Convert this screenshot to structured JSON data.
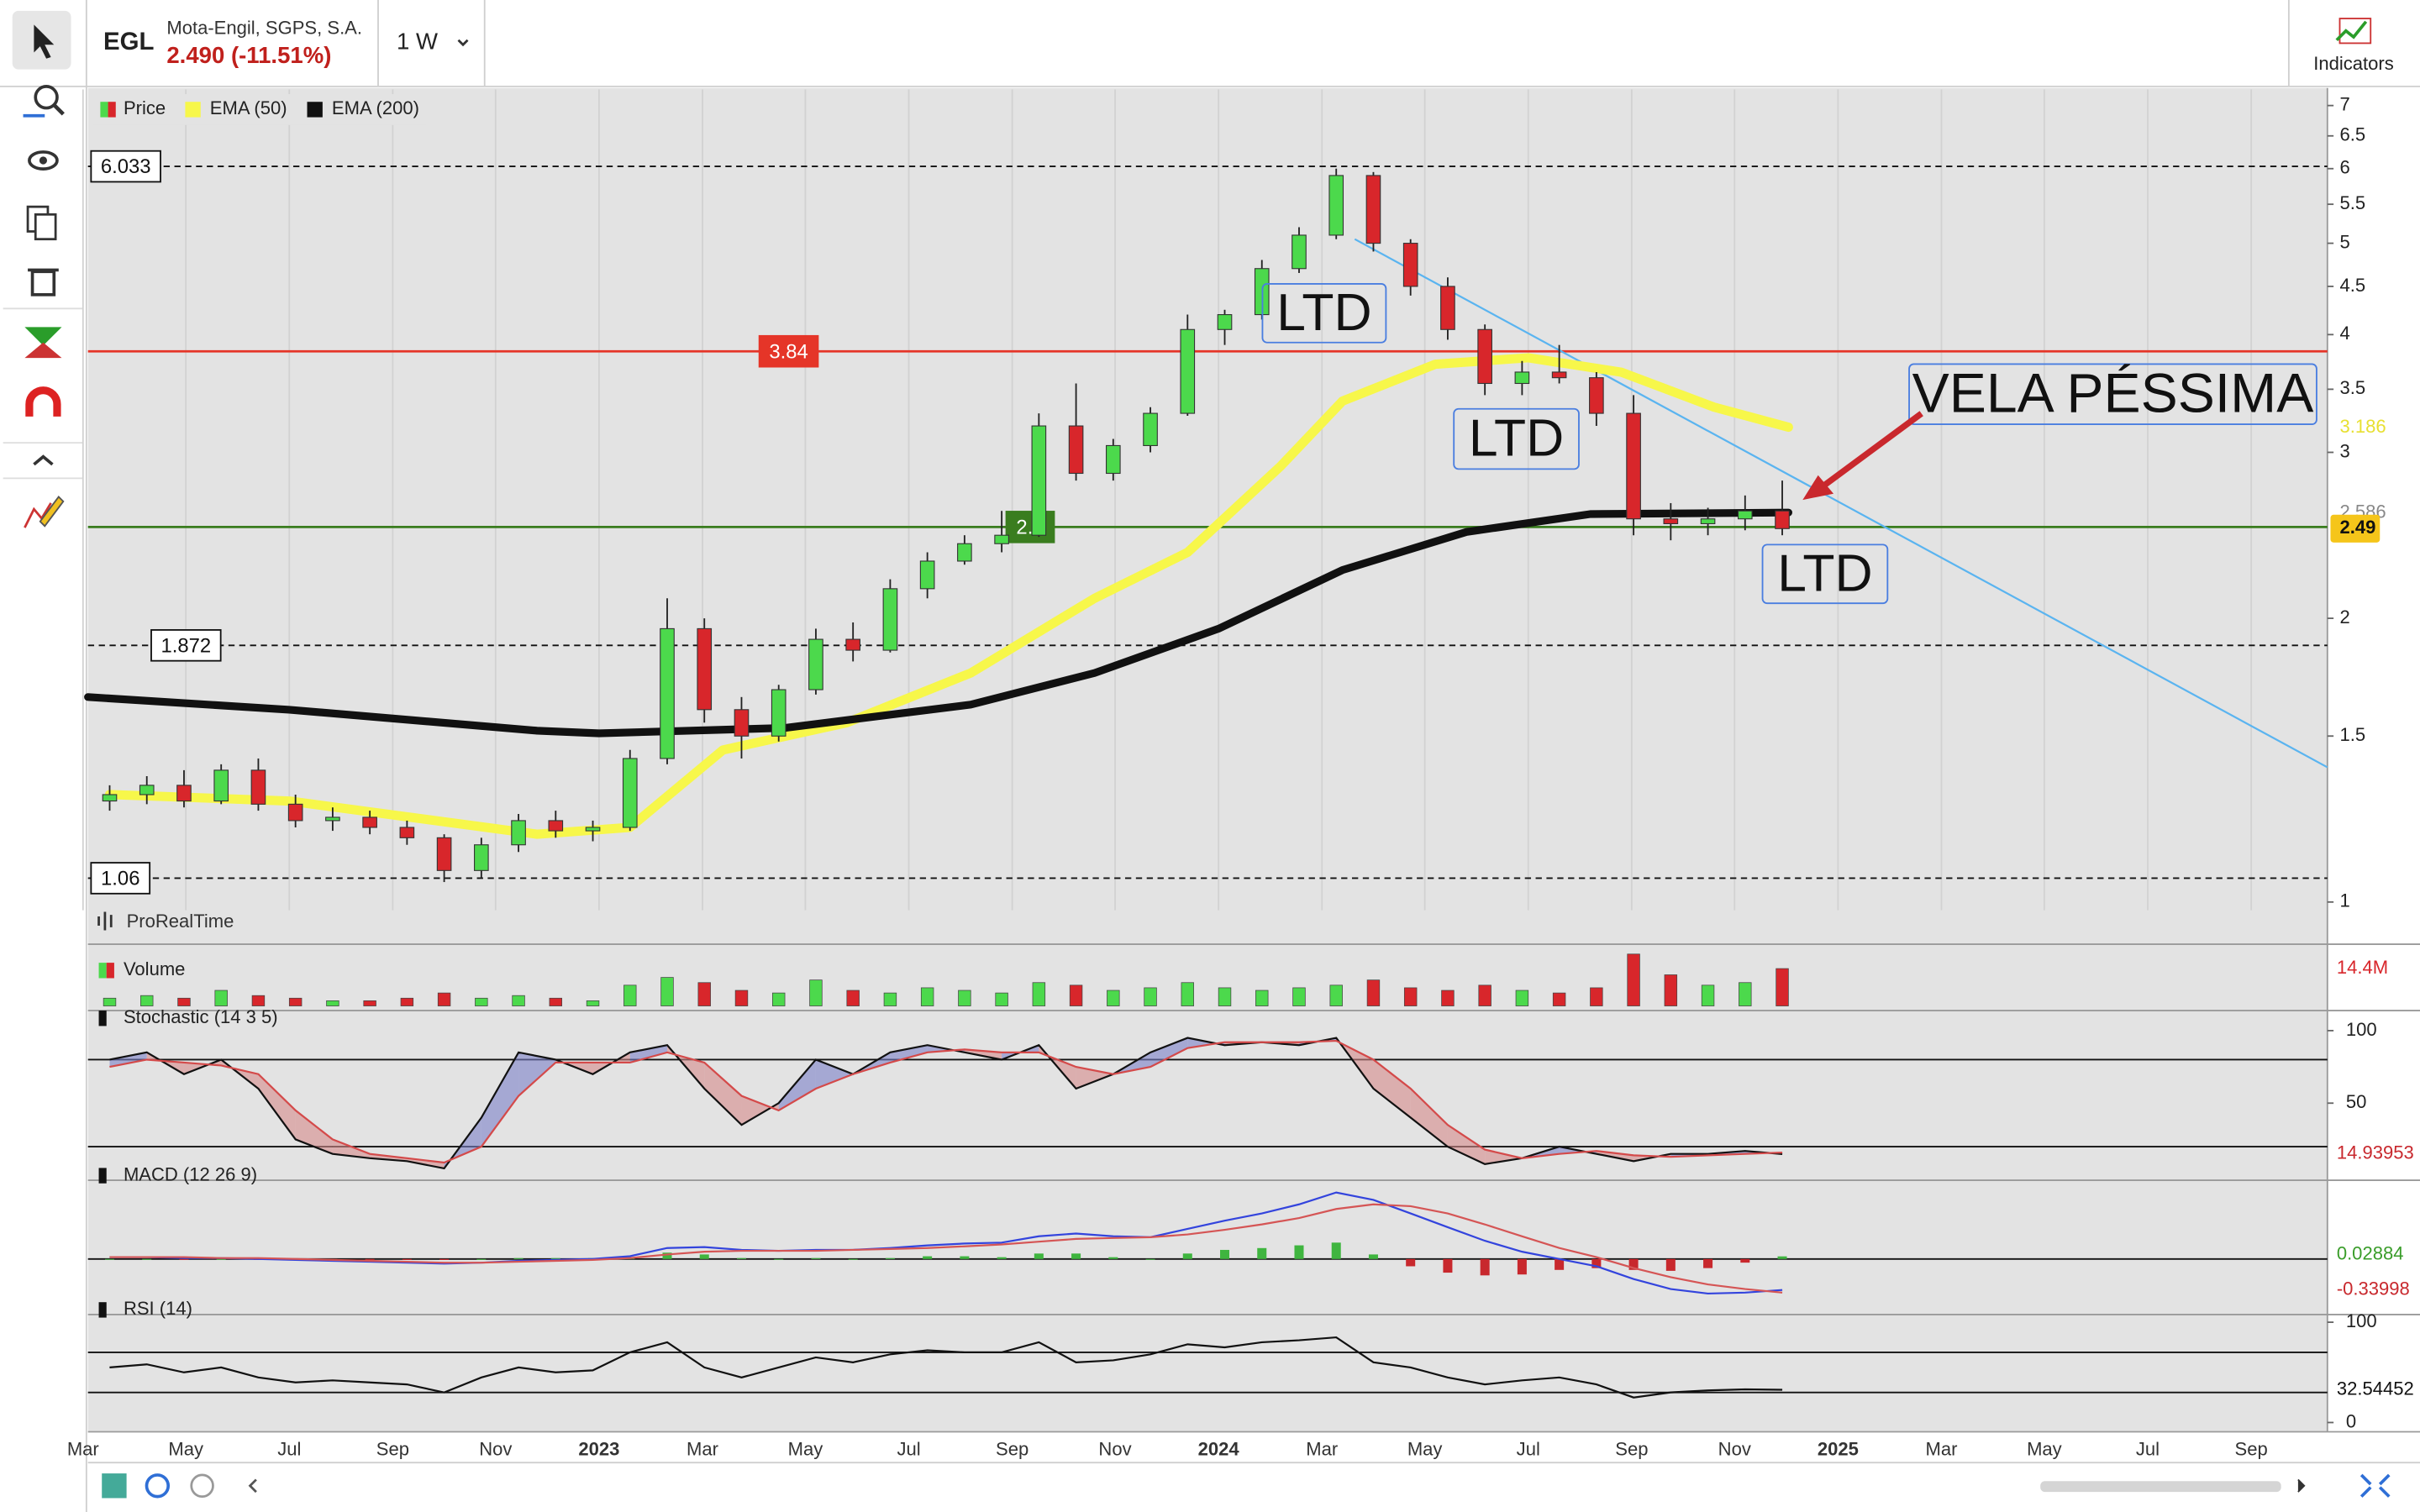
{
  "toolbar": {
    "symbol": "EGL",
    "company": "Mota-Engil, SGPS, S.A.",
    "quote": "2.490 (-11.51%)",
    "timeframe": "1 W",
    "indicators": "Indicators"
  },
  "chart_data": [
    {
      "type": "candlestick",
      "name": "Price",
      "source": "ProRealTime",
      "log": true,
      "grid": true,
      "up_color": "#4cd94c",
      "down_color": "#d8262b",
      "x": [
        2022.21,
        2022.27,
        2022.33,
        2022.39,
        2022.45,
        2022.51,
        2022.57,
        2022.63,
        2022.69,
        2022.75,
        2022.81,
        2022.87,
        2022.93,
        2022.99,
        2023.05,
        2023.11,
        2023.17,
        2023.23,
        2023.29,
        2023.35,
        2023.41,
        2023.47,
        2023.53,
        2023.59,
        2023.65,
        2023.71,
        2023.77,
        2023.83,
        2023.89,
        2023.95,
        2024.01,
        2024.07,
        2024.13,
        2024.19,
        2024.25,
        2024.31,
        2024.37,
        2024.43,
        2024.49,
        2024.55,
        2024.61,
        2024.67,
        2024.73,
        2024.79,
        2024.85,
        2024.91
      ],
      "open": [
        1.28,
        1.3,
        1.33,
        1.28,
        1.38,
        1.27,
        1.22,
        1.23,
        1.2,
        1.17,
        1.08,
        1.15,
        1.22,
        1.19,
        1.2,
        1.42,
        1.95,
        1.6,
        1.5,
        1.68,
        1.9,
        1.85,
        2.15,
        2.3,
        2.4,
        2.45,
        3.2,
        2.85,
        3.05,
        3.3,
        4.05,
        4.2,
        4.7,
        5.1,
        5.9,
        5.0,
        4.5,
        4.05,
        3.55,
        3.65,
        3.6,
        3.3,
        2.55,
        2.52,
        2.55,
        2.6
      ],
      "high": [
        1.33,
        1.36,
        1.38,
        1.4,
        1.42,
        1.3,
        1.26,
        1.25,
        1.22,
        1.18,
        1.17,
        1.24,
        1.25,
        1.22,
        1.45,
        2.1,
        2.0,
        1.65,
        1.7,
        1.95,
        1.98,
        2.2,
        2.35,
        2.45,
        2.6,
        3.3,
        3.55,
        3.1,
        3.35,
        4.2,
        4.25,
        4.8,
        5.2,
        6.0,
        5.95,
        5.05,
        4.6,
        4.1,
        3.75,
        3.9,
        3.65,
        3.45,
        2.65,
        2.62,
        2.7,
        2.8
      ],
      "low": [
        1.25,
        1.27,
        1.26,
        1.27,
        1.25,
        1.2,
        1.19,
        1.18,
        1.15,
        1.05,
        1.06,
        1.13,
        1.17,
        1.16,
        1.19,
        1.4,
        1.55,
        1.42,
        1.48,
        1.66,
        1.8,
        1.84,
        2.1,
        2.28,
        2.35,
        2.44,
        2.8,
        2.8,
        3.0,
        3.28,
        3.9,
        4.15,
        4.65,
        5.05,
        4.9,
        4.4,
        3.95,
        3.45,
        3.45,
        3.55,
        3.2,
        2.45,
        2.42,
        2.45,
        2.48,
        2.45
      ],
      "close": [
        1.3,
        1.33,
        1.28,
        1.38,
        1.27,
        1.22,
        1.23,
        1.2,
        1.17,
        1.08,
        1.15,
        1.22,
        1.19,
        1.2,
        1.42,
        1.95,
        1.6,
        1.5,
        1.68,
        1.9,
        1.85,
        2.15,
        2.3,
        2.4,
        2.45,
        3.2,
        2.85,
        3.05,
        3.3,
        4.05,
        4.2,
        4.7,
        5.1,
        5.9,
        5.0,
        4.5,
        4.05,
        3.55,
        3.65,
        3.6,
        3.3,
        2.55,
        2.52,
        2.55,
        2.6,
        2.49
      ],
      "xlim": [
        2022.175,
        2025.79
      ],
      "xticks": [
        {
          "value": 2022.167,
          "label": "Mar"
        },
        {
          "value": 2022.333,
          "label": "May"
        },
        {
          "value": 2022.5,
          "label": "Jul"
        },
        {
          "value": 2022.667,
          "label": "Sep"
        },
        {
          "value": 2022.833,
          "label": "Nov"
        },
        2023,
        {
          "value": 2023.167,
          "label": "Mar"
        },
        {
          "value": 2023.333,
          "label": "May"
        },
        {
          "value": 2023.5,
          "label": "Jul"
        },
        {
          "value": 2023.667,
          "label": "Sep"
        },
        {
          "value": 2023.833,
          "label": "Nov"
        },
        2024,
        {
          "value": 2024.167,
          "label": "Mar"
        },
        {
          "value": 2024.333,
          "label": "May"
        },
        {
          "value": 2024.5,
          "label": "Jul"
        },
        {
          "value": 2024.667,
          "label": "Sep"
        },
        {
          "value": 2024.833,
          "label": "Nov"
        },
        2025,
        {
          "value": 2025.167,
          "label": "Mar"
        },
        {
          "value": 2025.333,
          "label": "May"
        },
        {
          "value": 2025.5,
          "label": "Jul"
        },
        {
          "value": 2025.667,
          "label": "Sep"
        }
      ],
      "ylim": [
        0.98,
        7.28
      ],
      "yticks": [
        1,
        1.5,
        2,
        3,
        3.5,
        4,
        4.5,
        5,
        5.5,
        6,
        6.5,
        7
      ],
      "overlays": [
        {
          "name": "EMA (50)",
          "color": "#f7f74a",
          "x": [
            2022.21,
            2022.5,
            2022.9,
            2023.05,
            2023.2,
            2023.4,
            2023.6,
            2023.8,
            2023.95,
            2024.1,
            2024.2,
            2024.35,
            2024.5,
            2024.65,
            2024.8,
            2024.92
          ],
          "values": [
            1.3,
            1.28,
            1.18,
            1.2,
            1.45,
            1.55,
            1.75,
            2.1,
            2.35,
            2.9,
            3.4,
            3.72,
            3.78,
            3.65,
            3.35,
            3.19
          ]
        },
        {
          "name": "EMA (200)",
          "color": "#111111",
          "x": [
            2022.175,
            2022.5,
            2022.9,
            2023.0,
            2023.3,
            2023.6,
            2023.8,
            2024.0,
            2024.2,
            2024.4,
            2024.6,
            2024.92
          ],
          "values": [
            1.65,
            1.6,
            1.52,
            1.51,
            1.53,
            1.62,
            1.75,
            1.95,
            2.25,
            2.47,
            2.58,
            2.59
          ]
        }
      ],
      "levels": [
        {
          "value": 6.033,
          "color": "#111111",
          "dashed": true
        },
        {
          "value": 1.872,
          "color": "#111111",
          "dashed": true
        },
        {
          "value": 1.06,
          "color": "#111111",
          "dashed": true
        },
        {
          "value": 3.84,
          "color": "#e53528",
          "dashed": false
        },
        {
          "value": 2.5,
          "color": "#3a7d1f",
          "dashed": false
        }
      ],
      "trendline": {
        "x": [
          2024.22,
          2025.79
        ],
        "values": [
          5.05,
          1.39
        ],
        "color": "#5ab4f0"
      },
      "annotations": [
        "LTD",
        "LTD",
        "LTD",
        "VELA PÉSSIMA"
      ],
      "last_labels": [
        {
          "value": 3.186,
          "color": "#e8e032"
        },
        {
          "value": 2.586,
          "color": "#888888"
        },
        {
          "value": 2.49,
          "color": "#f5c51a",
          "badge": true
        }
      ]
    },
    {
      "type": "bar",
      "name": "Volume",
      "ylim": [
        0,
        22
      ],
      "values": [
        3,
        4,
        3,
        6,
        4,
        3,
        2,
        2,
        3,
        5,
        3,
        4,
        3,
        2,
        8,
        11,
        9,
        6,
        5,
        10,
        6,
        5,
        7,
        6,
        5,
        9,
        8,
        6,
        7,
        9,
        7,
        6,
        7,
        8,
        10,
        7,
        6,
        8,
        6,
        5,
        7,
        20,
        12,
        8,
        9,
        14.4
      ],
      "value_labels": [
        null,
        null,
        null,
        null,
        null,
        null,
        null,
        null,
        null,
        null,
        null,
        null,
        null,
        null,
        null,
        null,
        null,
        null,
        null,
        null,
        null,
        null,
        null,
        null,
        null,
        null,
        null,
        null,
        null,
        null,
        null,
        null,
        null,
        null,
        null,
        null,
        null,
        null,
        null,
        null,
        null,
        null,
        null,
        null,
        null,
        "14.4M"
      ]
    },
    {
      "type": "line",
      "name": "Stochastic (14 3 5)",
      "ylim": [
        0,
        100
      ],
      "yticks": [
        50,
        100
      ],
      "levels": [
        20,
        80
      ],
      "series": [
        {
          "color": "#111111",
          "values": [
            80,
            85,
            70,
            80,
            60,
            25,
            15,
            12,
            10,
            5,
            40,
            85,
            80,
            70,
            85,
            90,
            60,
            35,
            50,
            80,
            70,
            85,
            90,
            85,
            80,
            90,
            60,
            70,
            85,
            95,
            90,
            92,
            90,
            95,
            60,
            40,
            20,
            8,
            12,
            20,
            15,
            10,
            15,
            15,
            17,
            14.93953
          ]
        },
        {
          "color": "#d44a4a",
          "values": [
            75,
            80,
            78,
            76,
            70,
            45,
            25,
            15,
            12,
            9,
            20,
            55,
            78,
            78,
            78,
            85,
            78,
            55,
            45,
            60,
            70,
            78,
            85,
            87,
            85,
            85,
            75,
            70,
            75,
            88,
            92,
            92,
            92,
            93,
            80,
            60,
            35,
            18,
            12,
            15,
            17,
            14,
            13,
            14,
            15,
            16
          ]
        }
      ]
    },
    {
      "type": "line",
      "name": "MACD (12 26 9)",
      "ylim": [
        -0.576,
        0.78
      ],
      "levels": [
        0
      ],
      "series": [
        {
          "color": "#3344dd",
          "values": [
            0.02,
            0.02,
            0.01,
            0.01,
            0,
            -0.01,
            -0.02,
            -0.03,
            -0.04,
            -0.05,
            -0.04,
            -0.02,
            -0.01,
            0,
            0.03,
            0.12,
            0.13,
            0.1,
            0.09,
            0.1,
            0.1,
            0.12,
            0.15,
            0.17,
            0.18,
            0.25,
            0.28,
            0.25,
            0.24,
            0.33,
            0.42,
            0.5,
            0.6,
            0.73,
            0.65,
            0.5,
            0.35,
            0.2,
            0.08,
            0,
            -0.08,
            -0.22,
            -0.33,
            -0.38,
            -0.37,
            -0.33998
          ]
        },
        {
          "color": "#d55555",
          "values": [
            0.02,
            0.02,
            0.02,
            0.01,
            0.01,
            0,
            -0.01,
            -0.02,
            -0.03,
            -0.04,
            -0.04,
            -0.03,
            -0.02,
            -0.01,
            0.01,
            0.05,
            0.08,
            0.09,
            0.09,
            0.09,
            0.1,
            0.11,
            0.12,
            0.14,
            0.16,
            0.19,
            0.22,
            0.23,
            0.24,
            0.27,
            0.32,
            0.38,
            0.45,
            0.55,
            0.6,
            0.58,
            0.5,
            0.38,
            0.25,
            0.12,
            0.02,
            -0.1,
            -0.2,
            -0.28,
            -0.33,
            -0.36882
          ]
        }
      ],
      "histogram": [
        0,
        0,
        -0.01,
        0,
        -0.01,
        -0.01,
        -0.01,
        -0.01,
        -0.01,
        -0.01,
        0,
        0.01,
        0.01,
        0.01,
        0.02,
        0.07,
        0.05,
        0.01,
        0,
        0.01,
        0,
        0.01,
        0.03,
        0.03,
        0.02,
        0.06,
        0.06,
        0.02,
        0,
        0.06,
        0.1,
        0.12,
        0.15,
        0.18,
        0.05,
        -0.08,
        -0.15,
        -0.18,
        -0.17,
        -0.12,
        -0.1,
        -0.12,
        -0.13,
        -0.1,
        -0.04,
        0.02884
      ]
    },
    {
      "type": "line",
      "name": "RSI (14)",
      "ylim": [
        0,
        100
      ],
      "yticks": [
        0,
        100
      ],
      "levels": [
        30,
        70
      ],
      "series": [
        {
          "color": "#111111",
          "values": [
            55,
            58,
            50,
            55,
            45,
            40,
            42,
            40,
            38,
            30,
            45,
            55,
            50,
            52,
            70,
            80,
            55,
            45,
            55,
            65,
            60,
            68,
            72,
            70,
            70,
            80,
            60,
            62,
            68,
            78,
            75,
            80,
            82,
            85,
            60,
            55,
            45,
            38,
            42,
            45,
            38,
            25,
            30,
            32,
            33,
            32.54452
          ]
        }
      ]
    }
  ]
}
